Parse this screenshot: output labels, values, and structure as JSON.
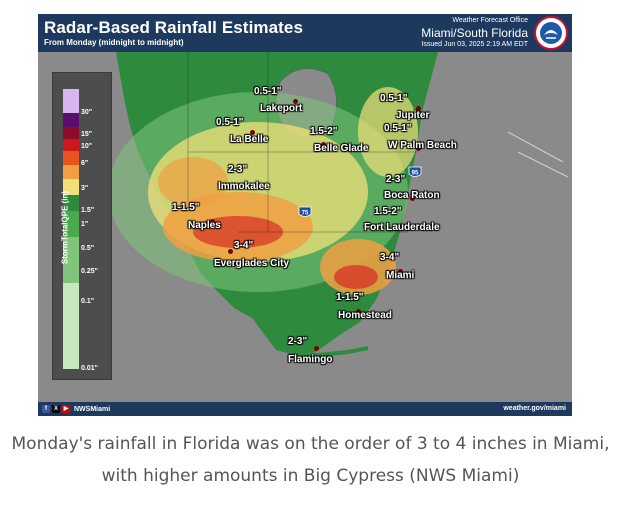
{
  "header": {
    "title": "Radar-Based Rainfall Estimates",
    "subtitle": "From Monday (midnight to midnight)",
    "office": "Weather Forecast Office",
    "region": "Miami/South Florida",
    "issued": "Issued Jun 03, 2025 2:19 AM EDT"
  },
  "legend": {
    "title": "StormTotalQPE (in)",
    "ticks": [
      "30\"",
      "15\"",
      "10\"",
      "6\"",
      "3\"",
      "1.5\"",
      "1\"",
      "0.5\"",
      "0.25\"",
      "0.1\"",
      "0.01\""
    ]
  },
  "map": {
    "cities": [
      "Lakeport",
      "La Belle",
      "Belle Glade",
      "Jupiter",
      "W Palm Beach",
      "Immokalee",
      "Boca Raton",
      "Naples",
      "Fort Lauderdale",
      "Everglades City",
      "Miami",
      "Homestead",
      "Flamingo"
    ],
    "amounts": [
      "0.5-1\"",
      "0.5-1\"",
      "1.5-2\"",
      "0.5-1\"",
      "0.5-1\"",
      "2-3\"",
      "2-3\"",
      "1-1.5\"",
      "1.5-2\"",
      "3-4\"",
      "3-4\"",
      "1-1.5\"",
      "2-3\""
    ],
    "shields": [
      "75",
      "95"
    ]
  },
  "footer": {
    "social": [
      "f",
      "X",
      "▶"
    ],
    "handle": "NWSMiami",
    "website": "weather.gov/miami"
  },
  "caption": "Monday's rainfall in Florida was on the order of 3 to 4 inches in Miami, with higher amounts in Big Cypress (NWS Miami)",
  "colors": {
    "header": "#1d3a5e",
    "ocean": "#8a8a8a",
    "land_green": "#2e8b3e",
    "light_green": "#7fc47a",
    "yellow": "#f1e07a",
    "orange": "#f0a042",
    "red": "#d8442a"
  }
}
